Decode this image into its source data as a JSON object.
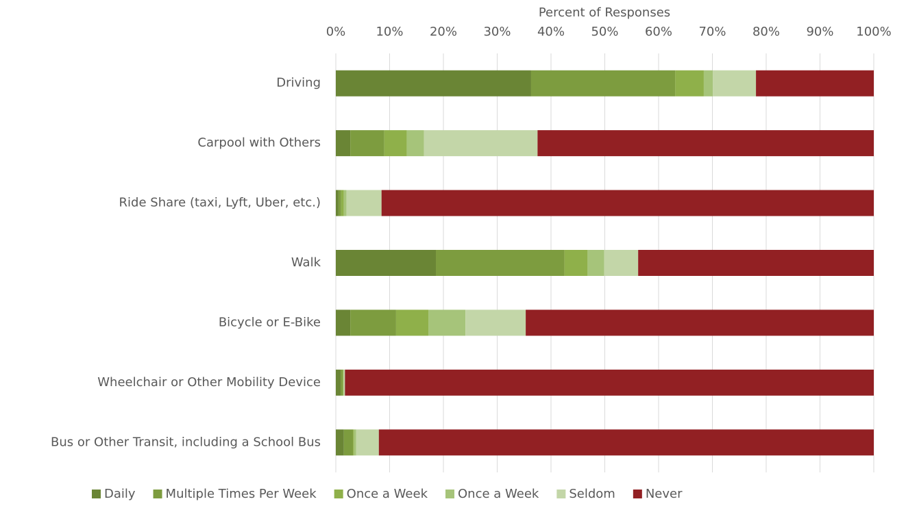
{
  "chart_data": {
    "type": "stacked-bar-horizontal",
    "x_label": "Percent of Responses",
    "categories": [
      "Driving",
      "Carpool with Others",
      "Ride Share (taxi, Lyft, Uber, etc.)",
      "Walk",
      "Bicycle or E-Bike",
      "Wheelchair or Other Mobility Device",
      "Bus or Other Transit, including a School Bus"
    ],
    "series": [
      {
        "name": "Daily",
        "color": "#6a8535",
        "values": [
          36.3,
          2.7,
          0.5,
          18.6,
          2.7,
          0.9,
          1.5
        ]
      },
      {
        "name": "Multiple Times Per Week",
        "color": "#7d9c3f",
        "values": [
          26.8,
          6.3,
          0.5,
          23.9,
          8.5,
          0.4,
          1.7
        ]
      },
      {
        "name": "Once a Week",
        "color": "#8fb04a",
        "values": [
          5.3,
          4.2,
          0.5,
          4.3,
          6.0,
          0.1,
          0.2
        ]
      },
      {
        "name": "Once a Week",
        "color": "#a6c47a",
        "values": [
          1.7,
          3.2,
          0.5,
          3.1,
          6.9,
          0.1,
          0.4
        ]
      },
      {
        "name": "Seldom",
        "color": "#c3d6a8",
        "values": [
          8.0,
          21.1,
          6.5,
          6.3,
          11.2,
          0.2,
          4.2
        ]
      },
      {
        "name": "Never",
        "color": "#922023",
        "values": [
          21.9,
          62.5,
          91.5,
          43.8,
          64.7,
          98.3,
          92.0
        ]
      }
    ],
    "xlim": [
      0,
      100
    ],
    "xticks": [
      {
        "value": 0,
        "label": "0%"
      },
      {
        "value": 10,
        "label": "10%"
      },
      {
        "value": 20,
        "label": "20%"
      },
      {
        "value": 30,
        "label": "30%"
      },
      {
        "value": 40,
        "label": "40%"
      },
      {
        "value": 50,
        "label": "50%"
      },
      {
        "value": 60,
        "label": "60%"
      },
      {
        "value": 70,
        "label": "70%"
      },
      {
        "value": 80,
        "label": "80%"
      },
      {
        "value": 90,
        "label": "90%"
      },
      {
        "value": 100,
        "label": "100%"
      }
    ],
    "grid": true,
    "legend": "bottom"
  }
}
